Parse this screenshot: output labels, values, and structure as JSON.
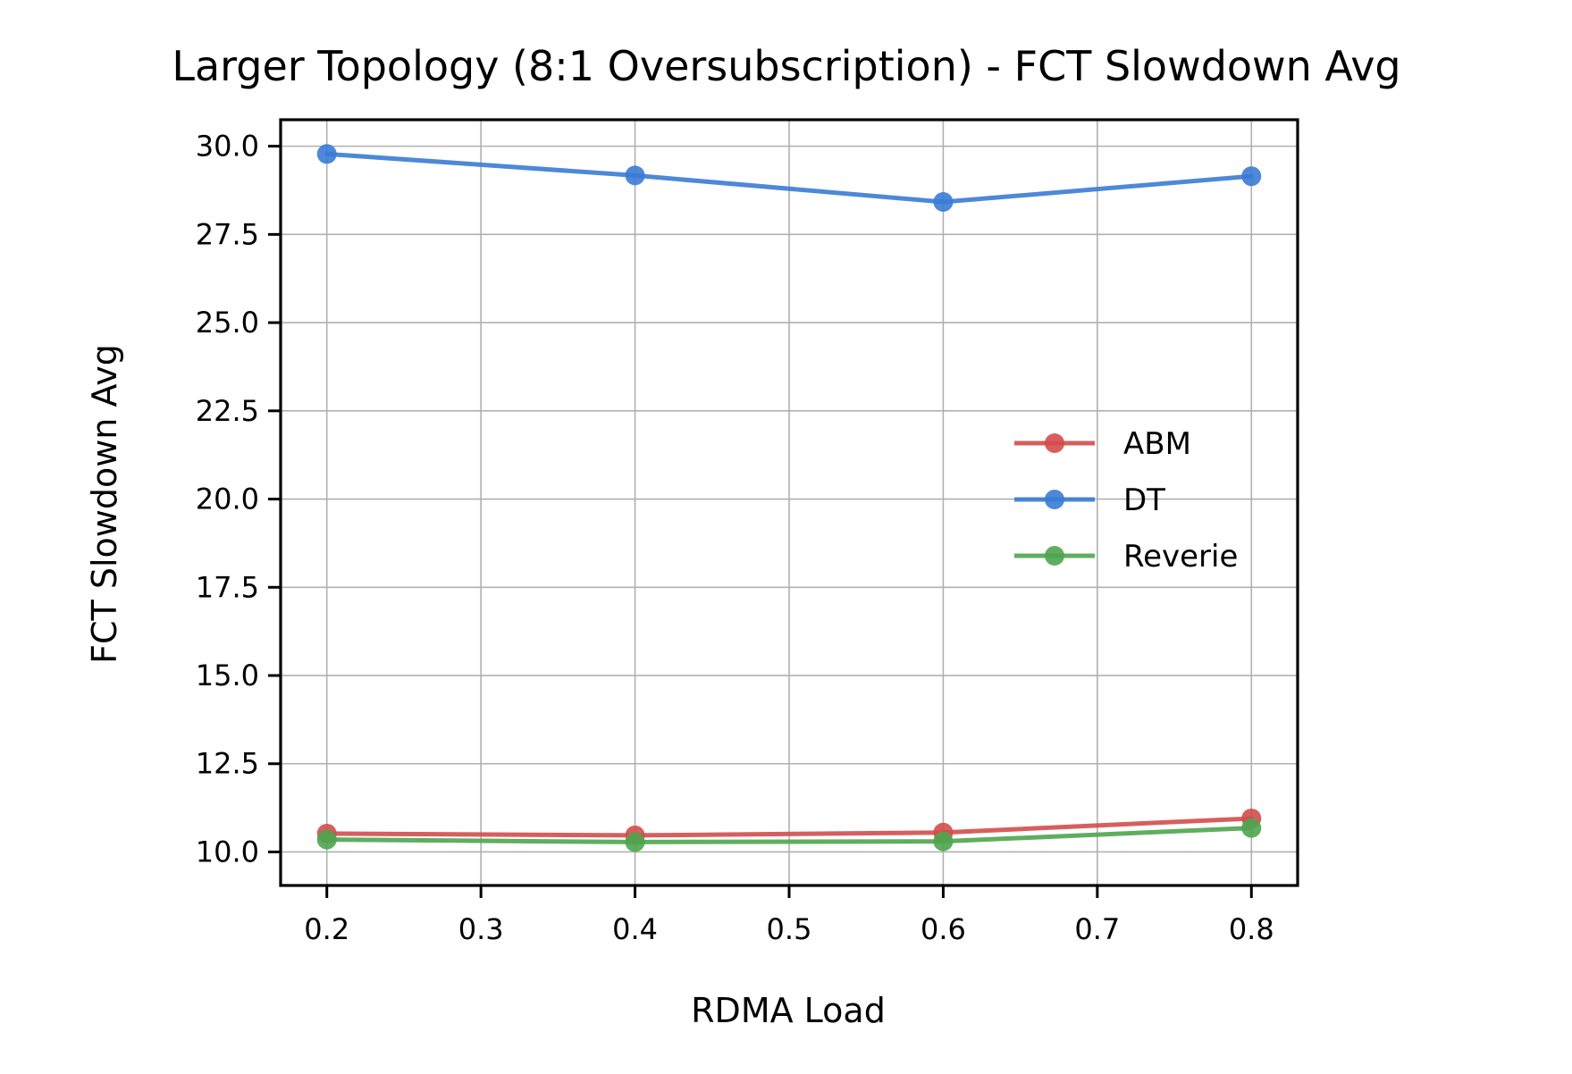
{
  "chart_data": {
    "type": "line",
    "title": "Larger Topology (8:1 Oversubscription) - FCT Slowdown Avg",
    "xlabel": "RDMA Load",
    "ylabel": "FCT Slowdown Avg",
    "x": [
      0.2,
      0.4,
      0.6,
      0.8
    ],
    "xlim": [
      0.17,
      0.83
    ],
    "ylim": [
      9.05,
      30.75
    ],
    "xticks": [
      "0.2",
      "0.3",
      "0.4",
      "0.5",
      "0.6",
      "0.7",
      "0.8"
    ],
    "xtick_values": [
      0.2,
      0.3,
      0.4,
      0.5,
      0.6,
      0.7,
      0.8
    ],
    "yticks": [
      "10.0",
      "12.5",
      "15.0",
      "17.5",
      "20.0",
      "22.5",
      "25.0",
      "27.5",
      "30.0"
    ],
    "ytick_values": [
      10.0,
      12.5,
      15.0,
      17.5,
      20.0,
      22.5,
      25.0,
      27.5,
      30.0
    ],
    "grid": true,
    "legend_position": "center-right",
    "series": [
      {
        "name": "ABM",
        "color": "#d44d4d",
        "values": [
          10.52,
          10.47,
          10.55,
          10.95
        ]
      },
      {
        "name": "DT",
        "color": "#3a7bd5",
        "values": [
          29.78,
          29.17,
          28.42,
          29.15
        ]
      },
      {
        "name": "Reverie",
        "color": "#4ea54e",
        "values": [
          10.35,
          10.28,
          10.3,
          10.68
        ]
      }
    ]
  }
}
